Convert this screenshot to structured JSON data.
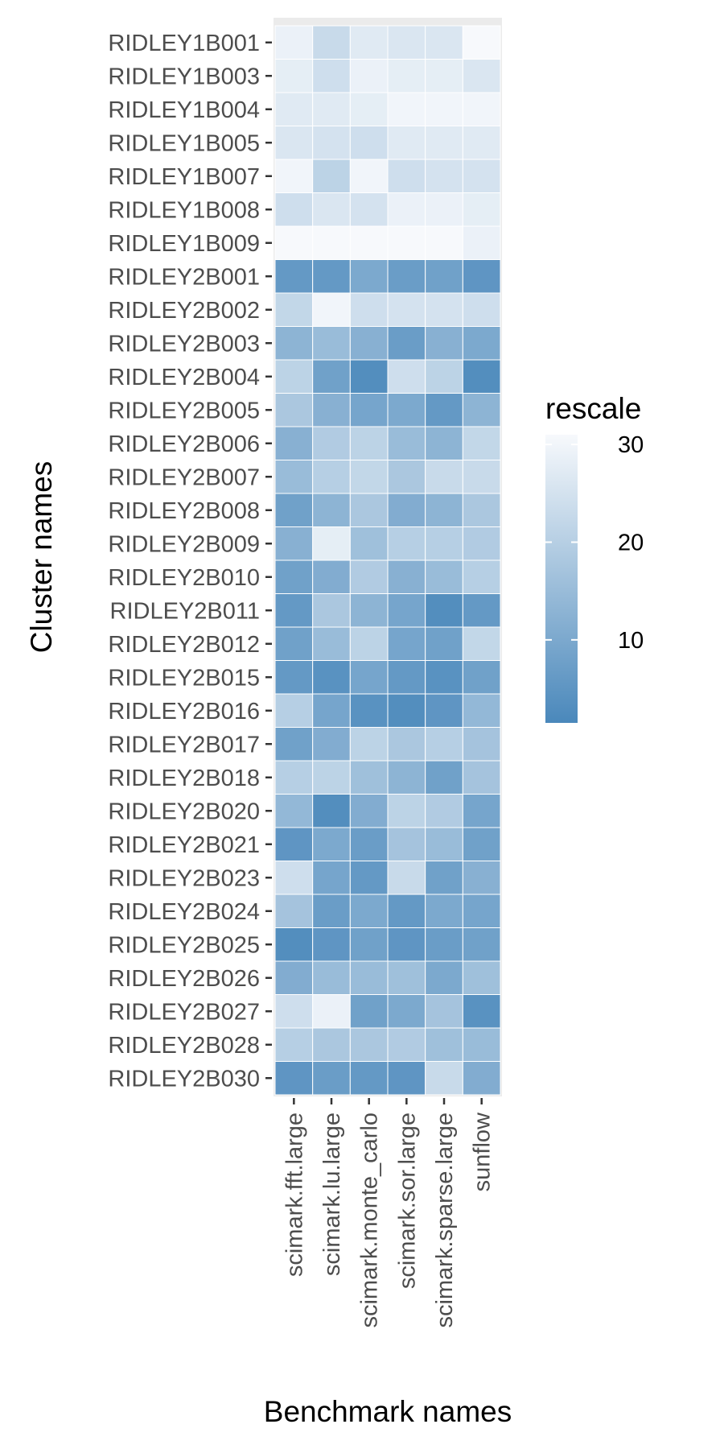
{
  "chart_data": {
    "type": "heatmap",
    "xlabel": "Benchmark names",
    "ylabel": "Cluster names",
    "legend": {
      "title": "rescale",
      "ticks": [
        10,
        20,
        30
      ],
      "range": [
        1.5,
        31
      ],
      "low_color": "#4a88bb",
      "high_color": "#f7f9fc",
      "placement": "right"
    },
    "grid": true,
    "x_categories": [
      "scimark.fft.large",
      "scimark.lu.large",
      "scimark.monte_carlo",
      "scimark.sor.large",
      "scimark.sparse.large",
      "sunflow"
    ],
    "y_categories": [
      "RIDLEY1B001",
      "RIDLEY1B003",
      "RIDLEY1B004",
      "RIDLEY1B005",
      "RIDLEY1B007",
      "RIDLEY1B008",
      "RIDLEY1B009",
      "RIDLEY2B001",
      "RIDLEY2B002",
      "RIDLEY2B003",
      "RIDLEY2B004",
      "RIDLEY2B005",
      "RIDLEY2B006",
      "RIDLEY2B007",
      "RIDLEY2B008",
      "RIDLEY2B009",
      "RIDLEY2B010",
      "RIDLEY2B011",
      "RIDLEY2B012",
      "RIDLEY2B015",
      "RIDLEY2B016",
      "RIDLEY2B017",
      "RIDLEY2B018",
      "RIDLEY2B020",
      "RIDLEY2B021",
      "RIDLEY2B023",
      "RIDLEY2B024",
      "RIDLEY2B025",
      "RIDLEY2B026",
      "RIDLEY2B027",
      "RIDLEY2B028",
      "RIDLEY2B030"
    ],
    "values": [
      [
        29,
        23,
        27,
        26,
        26,
        31
      ],
      [
        28,
        24,
        29,
        28,
        28,
        26
      ],
      [
        27,
        27,
        28,
        30,
        30,
        30
      ],
      [
        26,
        25,
        24,
        27,
        27,
        27
      ],
      [
        30,
        21,
        30,
        24,
        25,
        25
      ],
      [
        24,
        26,
        25,
        29,
        29,
        28
      ],
      [
        31,
        31,
        31,
        31,
        31,
        29
      ],
      [
        6,
        6,
        10,
        7,
        8,
        5
      ],
      [
        22,
        30,
        24,
        25,
        25,
        24
      ],
      [
        13,
        15,
        12,
        7,
        12,
        10
      ],
      [
        21,
        8,
        3,
        24,
        21,
        3
      ],
      [
        18,
        12,
        9,
        10,
        6,
        13
      ],
      [
        12,
        19,
        21,
        15,
        13,
        22
      ],
      [
        15,
        20,
        22,
        18,
        23,
        23
      ],
      [
        8,
        13,
        18,
        11,
        13,
        18
      ],
      [
        12,
        28,
        16,
        20,
        20,
        19
      ],
      [
        8,
        11,
        19,
        12,
        15,
        20
      ],
      [
        6,
        18,
        13,
        9,
        3,
        6
      ],
      [
        8,
        15,
        21,
        9,
        8,
        22
      ],
      [
        6,
        4,
        9,
        6,
        4,
        8
      ],
      [
        20,
        9,
        4,
        3,
        5,
        14
      ],
      [
        8,
        11,
        21,
        18,
        20,
        17
      ],
      [
        20,
        21,
        16,
        13,
        8,
        17
      ],
      [
        14,
        3,
        11,
        21,
        19,
        9
      ],
      [
        5,
        10,
        7,
        17,
        15,
        8
      ],
      [
        24,
        9,
        6,
        23,
        8,
        12
      ],
      [
        17,
        7,
        10,
        6,
        10,
        9
      ],
      [
        3,
        5,
        8,
        5,
        7,
        8
      ],
      [
        11,
        15,
        15,
        16,
        10,
        16
      ],
      [
        24,
        29,
        8,
        10,
        17,
        4
      ],
      [
        20,
        18,
        18,
        19,
        16,
        15
      ],
      [
        5,
        7,
        6,
        5,
        23,
        11
      ]
    ]
  }
}
